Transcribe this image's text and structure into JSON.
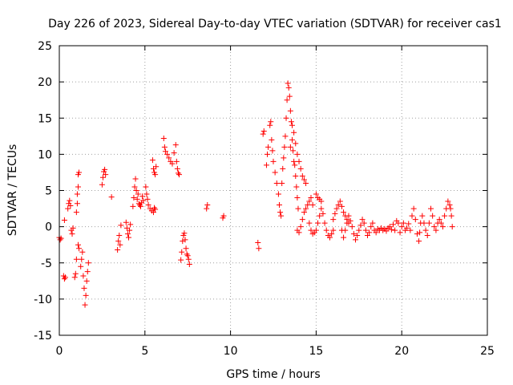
{
  "chart_data": {
    "type": "scatter",
    "title": "Day 226 of 2023, Sidereal Day-to-day VTEC variation (SDTVAR) for receiver cas1",
    "xlabel": "GPS time / hours",
    "ylabel": "SDTVAR / TECUs",
    "xlim": [
      0,
      25
    ],
    "ylim": [
      -15,
      25
    ],
    "xticks": [
      0,
      5,
      10,
      15,
      20,
      25
    ],
    "yticks": [
      -15,
      -10,
      -5,
      0,
      5,
      10,
      15,
      20,
      25
    ],
    "xtick_labels": [
      "0",
      "5",
      "10",
      "15",
      "20",
      "25"
    ],
    "ytick_labels": [
      "-15",
      "-10",
      "-5",
      "0",
      "5",
      "10",
      "15",
      "20",
      "25"
    ],
    "grid": true,
    "marker": "+",
    "color": "#ff0000",
    "series": [
      {
        "name": "SDTVAR",
        "points": [
          [
            0.0,
            -1.5
          ],
          [
            0.05,
            -1.8
          ],
          [
            0.1,
            -1.6
          ],
          [
            0.25,
            -6.8
          ],
          [
            0.3,
            -7.2
          ],
          [
            0.35,
            -7.0
          ],
          [
            0.3,
            0.9
          ],
          [
            0.5,
            2.5
          ],
          [
            0.55,
            3.2
          ],
          [
            0.6,
            3.6
          ],
          [
            0.65,
            2.9
          ],
          [
            0.7,
            -0.5
          ],
          [
            0.75,
            -1.0
          ],
          [
            0.8,
            -0.2
          ],
          [
            0.9,
            -7.0
          ],
          [
            0.95,
            -6.5
          ],
          [
            1.0,
            -4.5
          ],
          [
            1.0,
            2.0
          ],
          [
            1.05,
            3.2
          ],
          [
            1.05,
            4.5
          ],
          [
            1.1,
            5.5
          ],
          [
            1.1,
            7.2
          ],
          [
            1.15,
            7.5
          ],
          [
            1.1,
            -2.5
          ],
          [
            1.15,
            -3.0
          ],
          [
            1.25,
            -5.5
          ],
          [
            1.3,
            -4.5
          ],
          [
            1.35,
            -3.5
          ],
          [
            1.4,
            -6.8
          ],
          [
            1.45,
            -8.5
          ],
          [
            1.5,
            -10.8
          ],
          [
            1.55,
            -9.5
          ],
          [
            1.6,
            -7.5
          ],
          [
            1.65,
            -6.2
          ],
          [
            1.7,
            -5.0
          ],
          [
            2.5,
            5.8
          ],
          [
            2.55,
            6.8
          ],
          [
            2.6,
            7.6
          ],
          [
            2.65,
            7.9
          ],
          [
            2.7,
            7.2
          ],
          [
            3.05,
            4.1
          ],
          [
            3.4,
            -3.2
          ],
          [
            3.45,
            -2.0
          ],
          [
            3.5,
            -1.2
          ],
          [
            3.55,
            -2.5
          ],
          [
            3.6,
            0.2
          ],
          [
            3.9,
            0.6
          ],
          [
            3.95,
            -0.2
          ],
          [
            4.0,
            -1.0
          ],
          [
            4.05,
            -1.5
          ],
          [
            4.1,
            -0.5
          ],
          [
            4.15,
            0.3
          ],
          [
            4.3,
            2.8
          ],
          [
            4.35,
            4.0
          ],
          [
            4.4,
            5.5
          ],
          [
            4.45,
            6.6
          ],
          [
            4.5,
            5.0
          ],
          [
            4.55,
            3.8
          ],
          [
            4.6,
            4.5
          ],
          [
            4.65,
            3.2
          ],
          [
            4.7,
            3.0
          ],
          [
            4.75,
            2.8
          ],
          [
            4.8,
            3.3
          ],
          [
            4.85,
            4.2
          ],
          [
            4.9,
            3.6
          ],
          [
            5.05,
            5.5
          ],
          [
            5.1,
            4.5
          ],
          [
            5.15,
            3.8
          ],
          [
            5.2,
            3.0
          ],
          [
            5.3,
            2.5
          ],
          [
            5.4,
            2.2
          ],
          [
            5.5,
            2.0
          ],
          [
            5.55,
            2.6
          ],
          [
            5.6,
            2.4
          ],
          [
            5.45,
            9.2
          ],
          [
            5.5,
            8.0
          ],
          [
            5.55,
            7.5
          ],
          [
            5.6,
            7.2
          ],
          [
            5.65,
            8.3
          ],
          [
            6.1,
            12.2
          ],
          [
            6.15,
            11.0
          ],
          [
            6.2,
            10.4
          ],
          [
            6.3,
            10.0
          ],
          [
            6.4,
            9.5
          ],
          [
            6.5,
            9.0
          ],
          [
            6.6,
            8.7
          ],
          [
            6.7,
            10.2
          ],
          [
            6.8,
            11.3
          ],
          [
            6.85,
            9.0
          ],
          [
            6.9,
            8.0
          ],
          [
            6.95,
            7.4
          ],
          [
            7.0,
            7.2
          ],
          [
            7.1,
            -4.6
          ],
          [
            7.15,
            -3.5
          ],
          [
            7.2,
            -2.0
          ],
          [
            7.25,
            -1.2
          ],
          [
            7.3,
            -0.9
          ],
          [
            7.35,
            -1.8
          ],
          [
            7.4,
            -3.0
          ],
          [
            7.45,
            -3.8
          ],
          [
            7.5,
            -4.0
          ],
          [
            7.55,
            -4.5
          ],
          [
            7.6,
            -5.2
          ],
          [
            8.6,
            2.5
          ],
          [
            8.65,
            3.0
          ],
          [
            9.55,
            1.2
          ],
          [
            9.6,
            1.5
          ],
          [
            11.6,
            -2.2
          ],
          [
            11.65,
            -3.0
          ],
          [
            11.9,
            12.8
          ],
          [
            11.95,
            13.2
          ],
          [
            12.1,
            8.5
          ],
          [
            12.15,
            10.0
          ],
          [
            12.2,
            11.0
          ],
          [
            12.3,
            14.0
          ],
          [
            12.35,
            14.5
          ],
          [
            12.4,
            12.0
          ],
          [
            12.45,
            10.5
          ],
          [
            12.5,
            9.0
          ],
          [
            12.6,
            7.5
          ],
          [
            12.7,
            6.0
          ],
          [
            12.8,
            4.5
          ],
          [
            12.85,
            3.0
          ],
          [
            12.9,
            2.0
          ],
          [
            12.95,
            1.5
          ],
          [
            13.0,
            6.0
          ],
          [
            13.05,
            8.0
          ],
          [
            13.1,
            9.5
          ],
          [
            13.15,
            11.0
          ],
          [
            13.2,
            12.5
          ],
          [
            13.25,
            15.0
          ],
          [
            13.3,
            17.5
          ],
          [
            13.35,
            19.8
          ],
          [
            13.4,
            19.2
          ],
          [
            13.45,
            18.0
          ],
          [
            13.5,
            16.0
          ],
          [
            13.55,
            14.5
          ],
          [
            13.6,
            12.0
          ],
          [
            13.65,
            10.5
          ],
          [
            13.7,
            9.0
          ],
          [
            13.75,
            8.5
          ],
          [
            13.8,
            7.0
          ],
          [
            13.85,
            5.5
          ],
          [
            13.9,
            4.0
          ],
          [
            13.95,
            2.5
          ],
          [
            13.5,
            11.0
          ],
          [
            13.6,
            14.0
          ],
          [
            13.7,
            13.0
          ],
          [
            13.8,
            11.5
          ],
          [
            13.9,
            10.0
          ],
          [
            14.0,
            9.0
          ],
          [
            14.1,
            8.0
          ],
          [
            14.2,
            7.0
          ],
          [
            14.3,
            6.5
          ],
          [
            14.4,
            6.0
          ],
          [
            13.9,
            -0.5
          ],
          [
            14.0,
            -0.8
          ],
          [
            14.1,
            0.0
          ],
          [
            14.2,
            1.0
          ],
          [
            14.3,
            2.0
          ],
          [
            14.4,
            2.5
          ],
          [
            14.5,
            3.0
          ],
          [
            14.6,
            3.5
          ],
          [
            14.7,
            4.0
          ],
          [
            14.8,
            3.0
          ],
          [
            14.6,
            0.5
          ],
          [
            14.7,
            -0.5
          ],
          [
            14.8,
            -1.0
          ],
          [
            14.9,
            -0.8
          ],
          [
            15.0,
            -0.5
          ],
          [
            15.1,
            0.5
          ],
          [
            15.2,
            1.5
          ],
          [
            15.3,
            2.5
          ],
          [
            15.4,
            1.8
          ],
          [
            15.5,
            0.5
          ],
          [
            15.0,
            4.5
          ],
          [
            15.1,
            4.0
          ],
          [
            15.2,
            3.8
          ],
          [
            15.3,
            3.5
          ],
          [
            15.6,
            -0.5
          ],
          [
            15.7,
            -1.2
          ],
          [
            15.8,
            -1.5
          ],
          [
            15.9,
            -1.0
          ],
          [
            16.0,
            -0.5
          ],
          [
            16.0,
            1.0
          ],
          [
            16.1,
            1.8
          ],
          [
            16.2,
            2.5
          ],
          [
            16.3,
            3.0
          ],
          [
            16.4,
            3.5
          ],
          [
            16.5,
            2.8
          ],
          [
            16.6,
            2.0
          ],
          [
            16.7,
            1.5
          ],
          [
            16.8,
            1.0
          ],
          [
            16.9,
            0.5
          ],
          [
            16.5,
            -0.5
          ],
          [
            16.6,
            -1.5
          ],
          [
            16.7,
            -0.5
          ],
          [
            16.8,
            0.5
          ],
          [
            16.9,
            1.5
          ],
          [
            17.0,
            0.8
          ],
          [
            17.1,
            0.0
          ],
          [
            17.2,
            -1.0
          ],
          [
            17.3,
            -1.8
          ],
          [
            17.4,
            -1.2
          ],
          [
            17.5,
            -0.5
          ],
          [
            17.6,
            0.2
          ],
          [
            17.7,
            1.0
          ],
          [
            17.8,
            0.5
          ],
          [
            17.9,
            -0.5
          ],
          [
            18.0,
            -1.2
          ],
          [
            18.1,
            -0.8
          ],
          [
            18.2,
            0.0
          ],
          [
            18.3,
            0.5
          ],
          [
            18.4,
            -0.5
          ],
          [
            18.5,
            -0.8
          ],
          [
            18.6,
            -0.3
          ],
          [
            18.7,
            -0.5
          ],
          [
            18.8,
            -0.2
          ],
          [
            18.9,
            -0.5
          ],
          [
            19.0,
            -0.3
          ],
          [
            19.1,
            -0.6
          ],
          [
            19.2,
            -0.2
          ],
          [
            19.3,
            0.0
          ],
          [
            19.4,
            -0.4
          ],
          [
            19.5,
            0.3
          ],
          [
            19.6,
            -0.5
          ],
          [
            19.7,
            0.8
          ],
          [
            19.8,
            0.5
          ],
          [
            19.9,
            -0.8
          ],
          [
            20.0,
            0.0
          ],
          [
            20.1,
            0.5
          ],
          [
            20.2,
            -0.5
          ],
          [
            20.3,
            -0.2
          ],
          [
            20.4,
            0.4
          ],
          [
            20.5,
            -0.5
          ],
          [
            20.6,
            1.5
          ],
          [
            20.7,
            2.5
          ],
          [
            20.8,
            1.0
          ],
          [
            20.9,
            -1.0
          ],
          [
            21.0,
            -2.0
          ],
          [
            21.05,
            -0.8
          ],
          [
            21.1,
            0.5
          ],
          [
            21.2,
            1.5
          ],
          [
            21.3,
            0.5
          ],
          [
            21.4,
            -0.5
          ],
          [
            21.5,
            -1.2
          ],
          [
            21.6,
            0.5
          ],
          [
            21.7,
            2.5
          ],
          [
            21.8,
            1.5
          ],
          [
            21.9,
            0.0
          ],
          [
            22.0,
            -0.5
          ],
          [
            22.1,
            0.5
          ],
          [
            22.2,
            1.0
          ],
          [
            22.3,
            0.5
          ],
          [
            22.4,
            0.0
          ],
          [
            22.5,
            1.5
          ],
          [
            22.6,
            2.5
          ],
          [
            22.7,
            3.5
          ],
          [
            22.8,
            3.0
          ],
          [
            22.85,
            2.5
          ],
          [
            22.9,
            1.5
          ],
          [
            22.95,
            0.0
          ]
        ]
      }
    ]
  }
}
